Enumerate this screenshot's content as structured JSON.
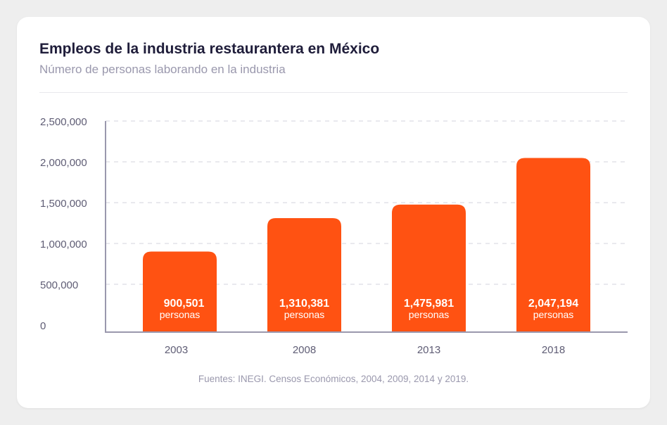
{
  "chart_data": {
    "type": "bar",
    "title": "Empleos de la industria restaurantera en México",
    "subtitle": "Número de personas laborando en la industria",
    "categories": [
      "2003",
      "2008",
      "2013",
      "2018"
    ],
    "values": [
      900501,
      1310381,
      1475981,
      2047194
    ],
    "data_labels": [
      "900,501",
      "1,310,381",
      "1,475,981",
      "2,047,194"
    ],
    "data_label_unit": "personas",
    "yticks": [
      0,
      500000,
      1000000,
      1500000,
      2000000,
      2500000
    ],
    "ytick_labels": [
      "0",
      "500,000",
      "1,000,000",
      "1,500,000",
      "2,000,000",
      "2,500,000"
    ],
    "ylim": [
      0,
      2500000
    ],
    "grid": true,
    "xlabel": "",
    "ylabel": "",
    "bar_color": "#ff5212",
    "source": "Fuentes: INEGI. Censos Económicos, 2004, 2009, 2014 y 2019."
  }
}
